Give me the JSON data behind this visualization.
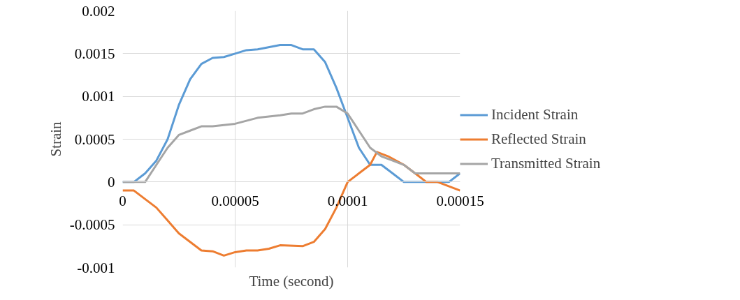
{
  "chart_data": {
    "type": "line",
    "xlabel": "Time (second)",
    "ylabel": "Strain",
    "xlim": [
      0,
      0.00015
    ],
    "xticks": [
      {
        "value": 0,
        "label": "0"
      },
      {
        "value": 5e-05,
        "label": "0.00005"
      },
      {
        "value": 0.0001,
        "label": "0.0001"
      },
      {
        "value": 0.00015,
        "label": "0.00015"
      }
    ],
    "ylim": [
      -0.001,
      0.002
    ],
    "yticks": [
      {
        "value": -0.001,
        "label": "-0.001"
      },
      {
        "value": -0.0005,
        "label": "-0.0005"
      },
      {
        "value": 0,
        "label": "0"
      },
      {
        "value": 0.0005,
        "label": "0.0005"
      },
      {
        "value": 0.001,
        "label": "0.001"
      },
      {
        "value": 0.0015,
        "label": "0.0015"
      },
      {
        "value": 0.002,
        "label": "0.002"
      }
    ],
    "grid": true,
    "legend": "right",
    "marker": "none",
    "line_style": "solid",
    "series": [
      {
        "name": "Incident Strain",
        "color": "#5b9bd5",
        "x": [
          0,
          5e-06,
          1e-05,
          1.5e-05,
          2e-05,
          2.5e-05,
          3e-05,
          3.5e-05,
          4e-05,
          4.5e-05,
          5e-05,
          5.5e-05,
          6e-05,
          7e-05,
          7.5e-05,
          8e-05,
          8.5e-05,
          9e-05,
          9.5e-05,
          0.0001,
          0.000105,
          0.00011,
          0.000115,
          0.00012,
          0.000125,
          0.00013,
          0.00014,
          0.000145,
          0.00015
        ],
        "values": [
          0,
          0,
          0.0001,
          0.00025,
          0.0005,
          0.0009,
          0.0012,
          0.00138,
          0.00145,
          0.00146,
          0.0015,
          0.00154,
          0.00155,
          0.0016,
          0.0016,
          0.00155,
          0.00155,
          0.0014,
          0.0011,
          0.00075,
          0.0004,
          0.0002,
          0.0002,
          0.0001,
          0,
          0,
          0,
          0,
          0.0001
        ]
      },
      {
        "name": "Reflected Strain",
        "color": "#ed7d31",
        "x": [
          0,
          5e-06,
          1e-05,
          1.5e-05,
          2e-05,
          2.5e-05,
          3e-05,
          3.5e-05,
          4e-05,
          4.5e-05,
          5e-05,
          5.5e-05,
          6e-05,
          6.5e-05,
          7e-05,
          8e-05,
          8.5e-05,
          9e-05,
          9.5e-05,
          0.0001,
          0.000105,
          0.00011,
          0.000113,
          0.000118,
          0.000125,
          0.00013,
          0.000135,
          0.00014,
          0.00015
        ],
        "values": [
          -0.0001,
          -0.0001,
          -0.0002,
          -0.0003,
          -0.00045,
          -0.0006,
          -0.0007,
          -0.0008,
          -0.00081,
          -0.00086,
          -0.00082,
          -0.0008,
          -0.0008,
          -0.00078,
          -0.00074,
          -0.00075,
          -0.0007,
          -0.00055,
          -0.0003,
          0,
          0.0001,
          0.0002,
          0.00035,
          0.0003,
          0.0002,
          0.0001,
          0,
          0,
          -0.0001
        ]
      },
      {
        "name": "Transmitted Strain",
        "color": "#a5a5a5",
        "x": [
          0,
          1e-05,
          1.5e-05,
          2e-05,
          2.5e-05,
          3e-05,
          3.5e-05,
          4e-05,
          5e-05,
          6e-05,
          7e-05,
          7.5e-05,
          8e-05,
          8.5e-05,
          9e-05,
          9.5e-05,
          0.0001,
          0.000105,
          0.00011,
          0.000115,
          0.00012,
          0.000125,
          0.00013,
          0.00014,
          0.00015
        ],
        "values": [
          0,
          0,
          0.0002,
          0.0004,
          0.00055,
          0.0006,
          0.00065,
          0.00065,
          0.00068,
          0.00075,
          0.00078,
          0.0008,
          0.0008,
          0.00085,
          0.00088,
          0.00088,
          0.0008,
          0.0006,
          0.0004,
          0.0003,
          0.00025,
          0.0002,
          0.0001,
          0.0001,
          0.0001
        ]
      }
    ]
  }
}
